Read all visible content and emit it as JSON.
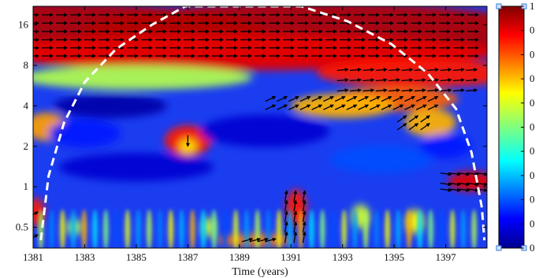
{
  "chart_data": {
    "type": "heatmap",
    "subtype": "wavelet-coherence",
    "title": "",
    "xlabel": "Time (years)",
    "ylabel": "",
    "x_ticks": [
      1381,
      1383,
      1385,
      1387,
      1389,
      1391,
      1393,
      1395,
      1397
    ],
    "x_tick_labels": [
      "1381",
      "1383",
      "1385",
      "1387",
      "1389",
      "1391",
      "1393",
      "1395",
      "1397"
    ],
    "xlim": [
      1381,
      1398.6
    ],
    "y_scale": "log2",
    "y_ticks": [
      0.5,
      1,
      2,
      4,
      8,
      16
    ],
    "y_tick_labels": [
      "0.5",
      "1",
      "2",
      "4",
      "8",
      "16"
    ],
    "ylim": [
      0.35,
      22
    ],
    "colorbar": {
      "range": [
        0,
        1
      ],
      "tick_labels": [
        "1",
        "0",
        "0",
        "0",
        "0",
        "0",
        "0",
        "0",
        "0",
        "0",
        "0"
      ],
      "colormap": "jet"
    },
    "cone_of_influence": [
      {
        "x": 1381.3,
        "y": 0.4
      },
      {
        "x": 1381.6,
        "y": 1.2
      },
      {
        "x": 1382.2,
        "y": 3
      },
      {
        "x": 1383.0,
        "y": 6
      },
      {
        "x": 1384.2,
        "y": 10.5
      },
      {
        "x": 1385.6,
        "y": 16
      },
      {
        "x": 1386.9,
        "y": 22
      },
      {
        "x": 1391.4,
        "y": 22
      },
      {
        "x": 1393.2,
        "y": 17
      },
      {
        "x": 1394.9,
        "y": 11.5
      },
      {
        "x": 1396.3,
        "y": 7
      },
      {
        "x": 1397.4,
        "y": 3.8
      },
      {
        "x": 1398.0,
        "y": 1.8
      },
      {
        "x": 1398.4,
        "y": 0.7
      },
      {
        "x": 1398.5,
        "y": 0.4
      }
    ],
    "regions": [
      {
        "x": 1381.0,
        "y": 14.0,
        "rx": 9.0,
        "ry": 0.75,
        "v": 0.95
      },
      {
        "x": 1392.0,
        "y": 14.0,
        "rx": 9.0,
        "ry": 0.75,
        "v": 0.95
      },
      {
        "x": 1389.0,
        "y": 10.0,
        "rx": 10.0,
        "ry": 0.45,
        "v": 0.9
      },
      {
        "x": 1396.0,
        "y": 7.0,
        "rx": 4.0,
        "ry": 0.35,
        "v": 0.85
      },
      {
        "x": 1395.0,
        "y": 4.5,
        "rx": 2.5,
        "ry": 0.3,
        "v": 0.78
      },
      {
        "x": 1393.0,
        "y": 4.0,
        "rx": 2.0,
        "ry": 0.3,
        "v": 0.7
      },
      {
        "x": 1396.4,
        "y": 3.0,
        "rx": 1.0,
        "ry": 0.35,
        "v": 0.7
      },
      {
        "x": 1381.5,
        "y": 2.8,
        "rx": 0.8,
        "ry": 0.35,
        "v": 0.72
      },
      {
        "x": 1387.0,
        "y": 2.2,
        "rx": 0.9,
        "ry": 0.38,
        "v": 0.85
      },
      {
        "x": 1387.0,
        "y": 2.0,
        "rx": 0.35,
        "ry": 0.18,
        "v": 0.65
      },
      {
        "x": 1391.2,
        "y": 0.7,
        "rx": 0.4,
        "ry": 0.45,
        "v": 0.85
      },
      {
        "x": 1381.1,
        "y": 0.65,
        "rx": 0.35,
        "ry": 0.35,
        "v": 0.85
      },
      {
        "x": 1398.0,
        "y": 1.1,
        "rx": 0.9,
        "ry": 0.25,
        "v": 0.9
      },
      {
        "x": 1389.6,
        "y": 0.4,
        "rx": 1.5,
        "ry": 0.15,
        "v": 0.75
      },
      {
        "x": 1395.8,
        "y": 0.55,
        "rx": 0.35,
        "ry": 0.3,
        "v": 0.62
      },
      {
        "x": 1387.8,
        "y": 0.5,
        "rx": 0.25,
        "ry": 0.25,
        "v": 0.58
      },
      {
        "x": 1382.6,
        "y": 0.5,
        "rx": 0.3,
        "ry": 0.2,
        "v": 0.55
      },
      {
        "x": 1393.7,
        "y": 0.6,
        "rx": 0.35,
        "ry": 0.3,
        "v": 0.58
      },
      {
        "x": 1385.0,
        "y": 6.5,
        "rx": 4.5,
        "ry": 0.3,
        "v": 0.55
      },
      {
        "x": 1384.0,
        "y": 4.0,
        "rx": 2.2,
        "ry": 0.3,
        "v": 0.04
      },
      {
        "x": 1390.0,
        "y": 2.6,
        "rx": 2.5,
        "ry": 0.4,
        "v": 0.08
      },
      {
        "x": 1385.0,
        "y": 1.4,
        "rx": 3.0,
        "ry": 0.35,
        "v": 0.08
      },
      {
        "x": 1383.0,
        "y": 2.5,
        "rx": 1.4,
        "ry": 0.35,
        "v": 0.15
      },
      {
        "x": 1394.5,
        "y": 1.6,
        "rx": 2.0,
        "ry": 0.35,
        "v": 0.2
      },
      {
        "x": 1397.0,
        "y": 2.0,
        "rx": 1.0,
        "ry": 0.3,
        "v": 0.15
      }
    ],
    "arrow_fields": [
      {
        "x0": 1381.0,
        "x1": 1398.5,
        "dx": 0.55,
        "y": [
          19,
          16.5,
          14.3,
          12.4,
          10.8,
          9.4
        ],
        "angle": 0
      },
      {
        "x0": 1393.0,
        "x1": 1398.3,
        "dx": 0.5,
        "y": [
          7.4,
          6.2,
          5.2
        ],
        "angle": 5
      },
      {
        "x0": 1390.2,
        "x1": 1396.8,
        "dx": 0.45,
        "y": [
          4.5,
          3.9
        ],
        "angle": 25
      },
      {
        "x0": 1395.3,
        "x1": 1396.2,
        "dx": 0.45,
        "y": [
          3.2,
          2.8
        ],
        "angle": 35
      },
      {
        "x0": 1397.0,
        "x1": 1398.4,
        "dx": 0.35,
        "y": [
          1.25,
          1.05,
          0.95
        ],
        "angle": -8
      },
      {
        "x0": 1390.8,
        "x1": 1391.6,
        "dx": 0.35,
        "y": [
          0.85,
          0.72,
          0.6,
          0.5,
          0.42
        ],
        "angle": 80
      },
      {
        "x0": 1389.3,
        "x1": 1390.2,
        "dx": 0.3,
        "y": [
          0.4
        ],
        "angle": 15
      },
      {
        "x0": 1381.0,
        "x1": 1381.2,
        "dx": 0.3,
        "y": [
          0.62,
          0.42
        ],
        "angle": 30
      },
      {
        "x0": 1387.0,
        "x1": 1387.1,
        "dx": 1.0,
        "y": [
          2.2
        ],
        "angle": -90
      }
    ]
  }
}
